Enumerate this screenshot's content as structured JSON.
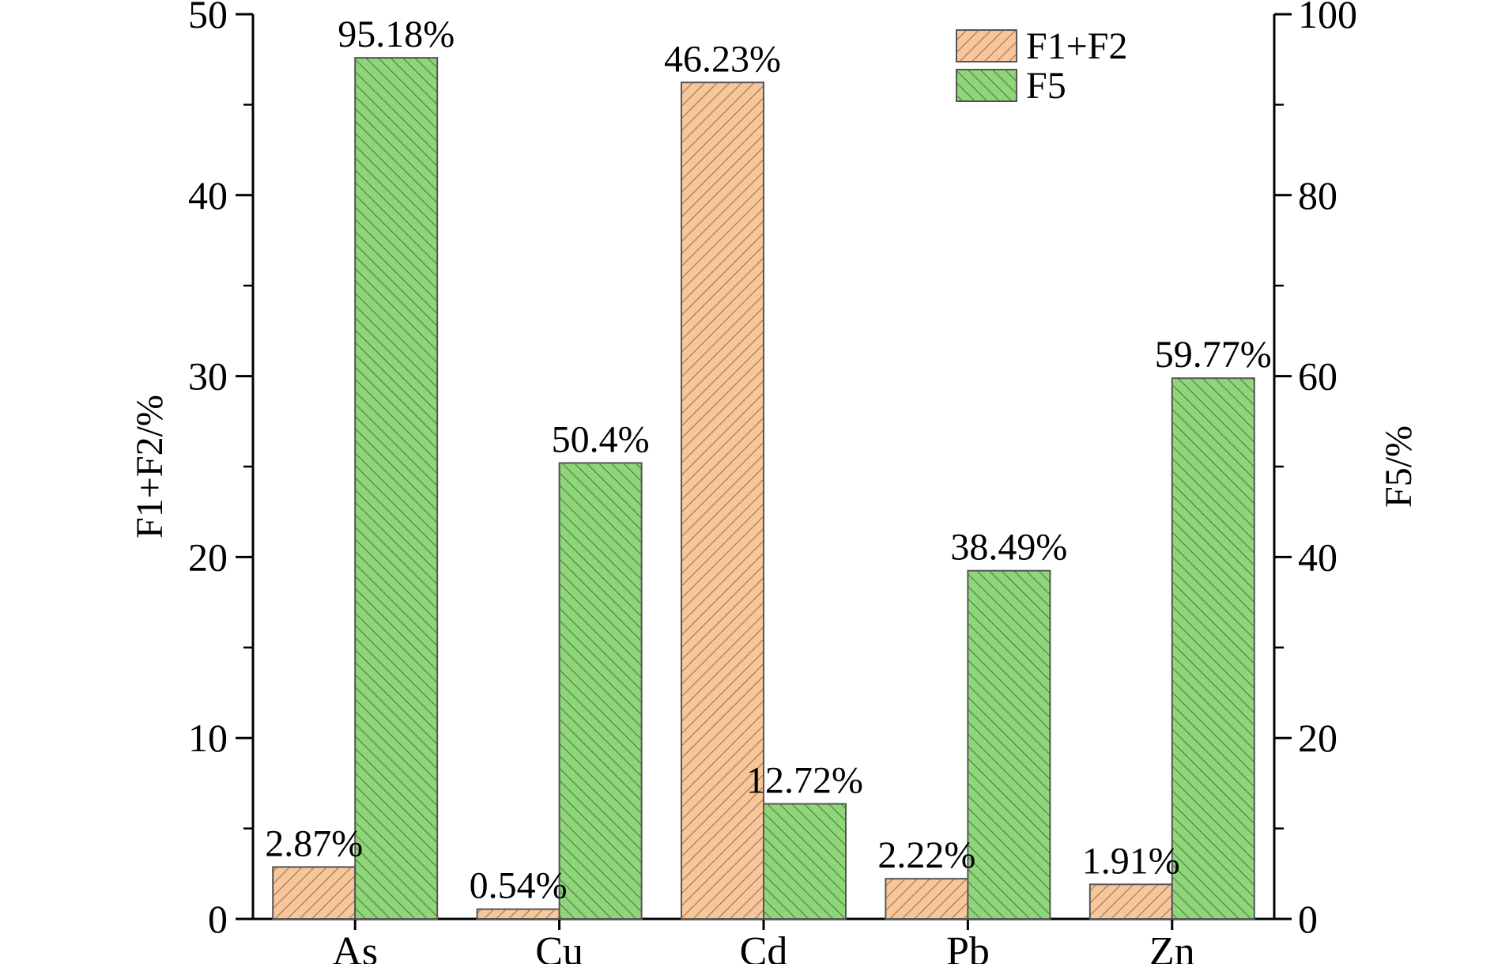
{
  "chart_data": {
    "type": "bar",
    "categories": [
      "As",
      "Cu",
      "Cd",
      "Pb",
      "Zn"
    ],
    "series": [
      {
        "name": "F1+F2",
        "axis": "left",
        "values": [
          2.87,
          0.54,
          46.23,
          2.22,
          1.91
        ],
        "labels": [
          "2.87%",
          "0.54%",
          "46.23%",
          "2.22%",
          "1.91%"
        ],
        "color": "#f7c79b",
        "hatch_color": "#a07050"
      },
      {
        "name": "F5",
        "axis": "right",
        "values": [
          95.18,
          50.4,
          12.72,
          38.49,
          59.77
        ],
        "labels": [
          "95.18%",
          "50.4%",
          "12.72%",
          "38.49%",
          "59.77%"
        ],
        "color": "#8fd67a",
        "hatch_color": "#4a7d3a"
      }
    ],
    "y_left": {
      "label": "F1+F2/%",
      "ylim": [
        0,
        50
      ],
      "ticks": [
        "0",
        "10",
        "20",
        "30",
        "40",
        "50"
      ]
    },
    "y_right": {
      "label": "F5/%",
      "ylim": [
        0,
        100
      ],
      "ticks": [
        "0",
        "20",
        "40",
        "60",
        "80",
        "100"
      ]
    },
    "grid": false,
    "legend": "top-right"
  }
}
